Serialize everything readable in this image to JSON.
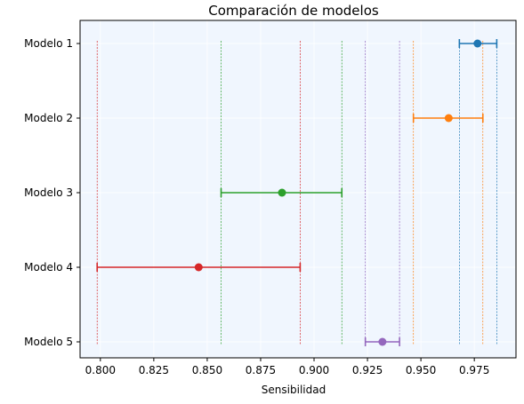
{
  "chart_data": {
    "type": "errorbar",
    "title": "Comparación de modelos",
    "xlabel": "Sensibilidad",
    "ylabel": "",
    "xlim": [
      0.7905,
      0.9945
    ],
    "x_ticks": [
      "0.800",
      "0.825",
      "0.850",
      "0.875",
      "0.900",
      "0.925",
      "0.950",
      "0.975"
    ],
    "grid": true,
    "background": "#f0f6fe",
    "series": [
      {
        "name": "Modelo 1",
        "value": 0.9765,
        "lower": 0.968,
        "upper": 0.9855,
        "color": "#1f77b4"
      },
      {
        "name": "Modelo 2",
        "value": 0.963,
        "lower": 0.9465,
        "upper": 0.979,
        "color": "#ff7f0e"
      },
      {
        "name": "Modelo 3",
        "value": 0.885,
        "lower": 0.8565,
        "upper": 0.913,
        "color": "#2ca02c"
      },
      {
        "name": "Modelo 4",
        "value": 0.846,
        "lower": 0.7985,
        "upper": 0.8935,
        "color": "#d62728"
      },
      {
        "name": "Modelo 5",
        "value": 0.932,
        "lower": 0.924,
        "upper": 0.94,
        "color": "#9467bd"
      }
    ]
  }
}
